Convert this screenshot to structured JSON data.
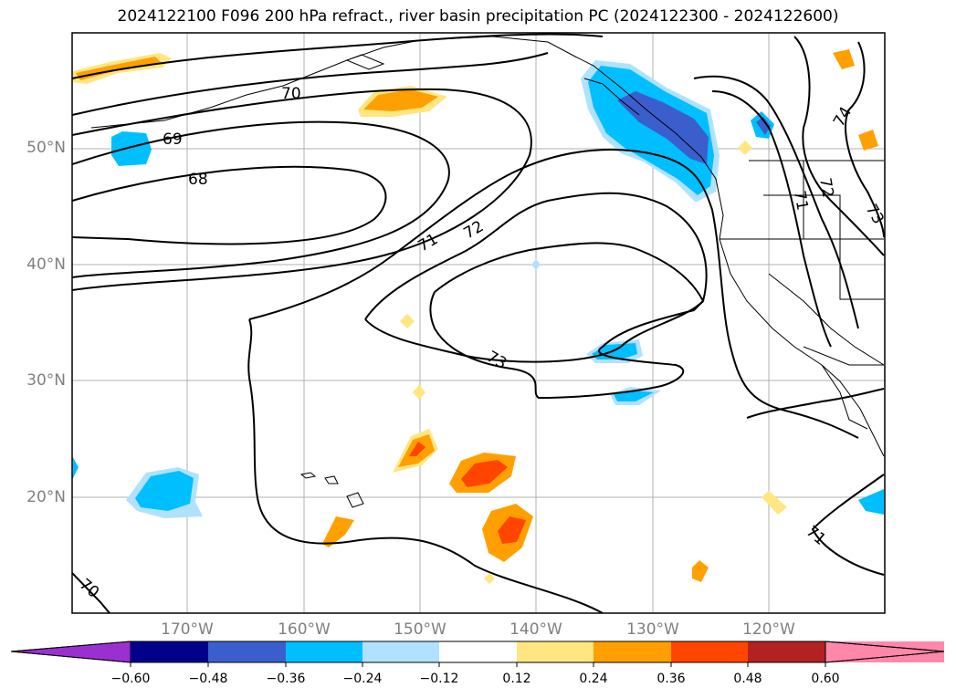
{
  "title": "2024122100 F096 200 hPa refract., river basin precipitation PC (2024122300 - 2024122600)",
  "map": {
    "lat_labels": [
      "50°N",
      "40°N",
      "30°N",
      "20°N"
    ],
    "lon_labels": [
      "170°W",
      "160°W",
      "150°W",
      "140°W",
      "130°W",
      "120°W"
    ],
    "contour_labels": [
      "69",
      "68",
      "70",
      "71",
      "72",
      "73",
      "74",
      "71",
      "72",
      "73",
      "71",
      "70"
    ],
    "colors": {
      "contour": "#000000",
      "grid": "#b0b0b0",
      "coast": "#000000"
    }
  },
  "colorbar": {
    "tick_labels": [
      "−0.60",
      "−0.48",
      "−0.36",
      "−0.24",
      "−0.12",
      "0.12",
      "0.24",
      "0.36",
      "0.48",
      "0.60"
    ],
    "colors": [
      "#9b30d0",
      "#00008b",
      "#3a5fcd",
      "#00bfff",
      "#b0e2ff",
      "#ffffff",
      "#ffe680",
      "#ffa000",
      "#ff4500",
      "#b22222",
      "#ff88aa"
    ]
  }
}
